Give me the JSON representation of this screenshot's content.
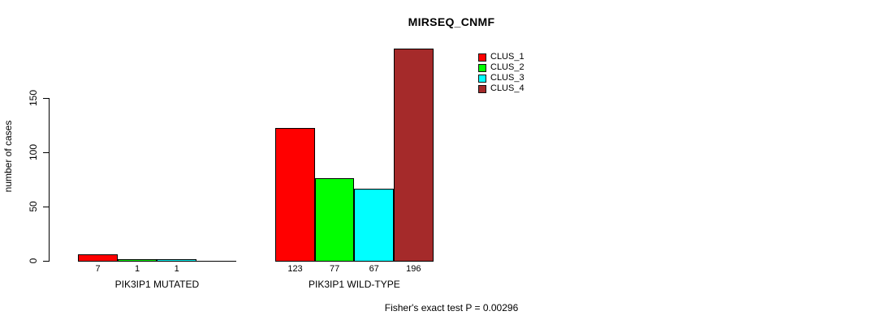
{
  "title": "MIRSEQ_CNMF",
  "footer": "Fisher's exact test P = 0.00296",
  "y_axis": {
    "label": "number of cases",
    "ticks": [
      "0",
      "50",
      "100",
      "150"
    ]
  },
  "legend": [
    {
      "label": "CLUS_1",
      "color": "#FF0000"
    },
    {
      "label": "CLUS_2",
      "color": "#00FF00"
    },
    {
      "label": "CLUS_3",
      "color": "#00FFFF"
    },
    {
      "label": "CLUS_4",
      "color": "#A52A2A"
    }
  ],
  "chart_data": {
    "type": "bar",
    "title": "MIRSEQ_CNMF",
    "xlabel": "",
    "ylabel": "number of cases",
    "ylim": [
      0,
      150
    ],
    "grid": false,
    "legend_position": "top-right-inside",
    "categories": [
      "PIK3IP1 MUTATED",
      "PIK3IP1 WILD-TYPE"
    ],
    "series": [
      {
        "name": "CLUS_1",
        "color": "#FF0000",
        "values": [
          7,
          123
        ]
      },
      {
        "name": "CLUS_2",
        "color": "#00FF00",
        "values": [
          1,
          77
        ]
      },
      {
        "name": "CLUS_3",
        "color": "#00FFFF",
        "values": [
          1,
          67
        ]
      },
      {
        "name": "CLUS_4",
        "color": "#A52A2A",
        "values": [
          0,
          196
        ]
      }
    ],
    "bar_labels": [
      [
        "7",
        "1",
        "1",
        ""
      ],
      [
        "123",
        "77",
        "67",
        "196"
      ]
    ],
    "annotation": "Fisher's exact test P = 0.00296"
  }
}
